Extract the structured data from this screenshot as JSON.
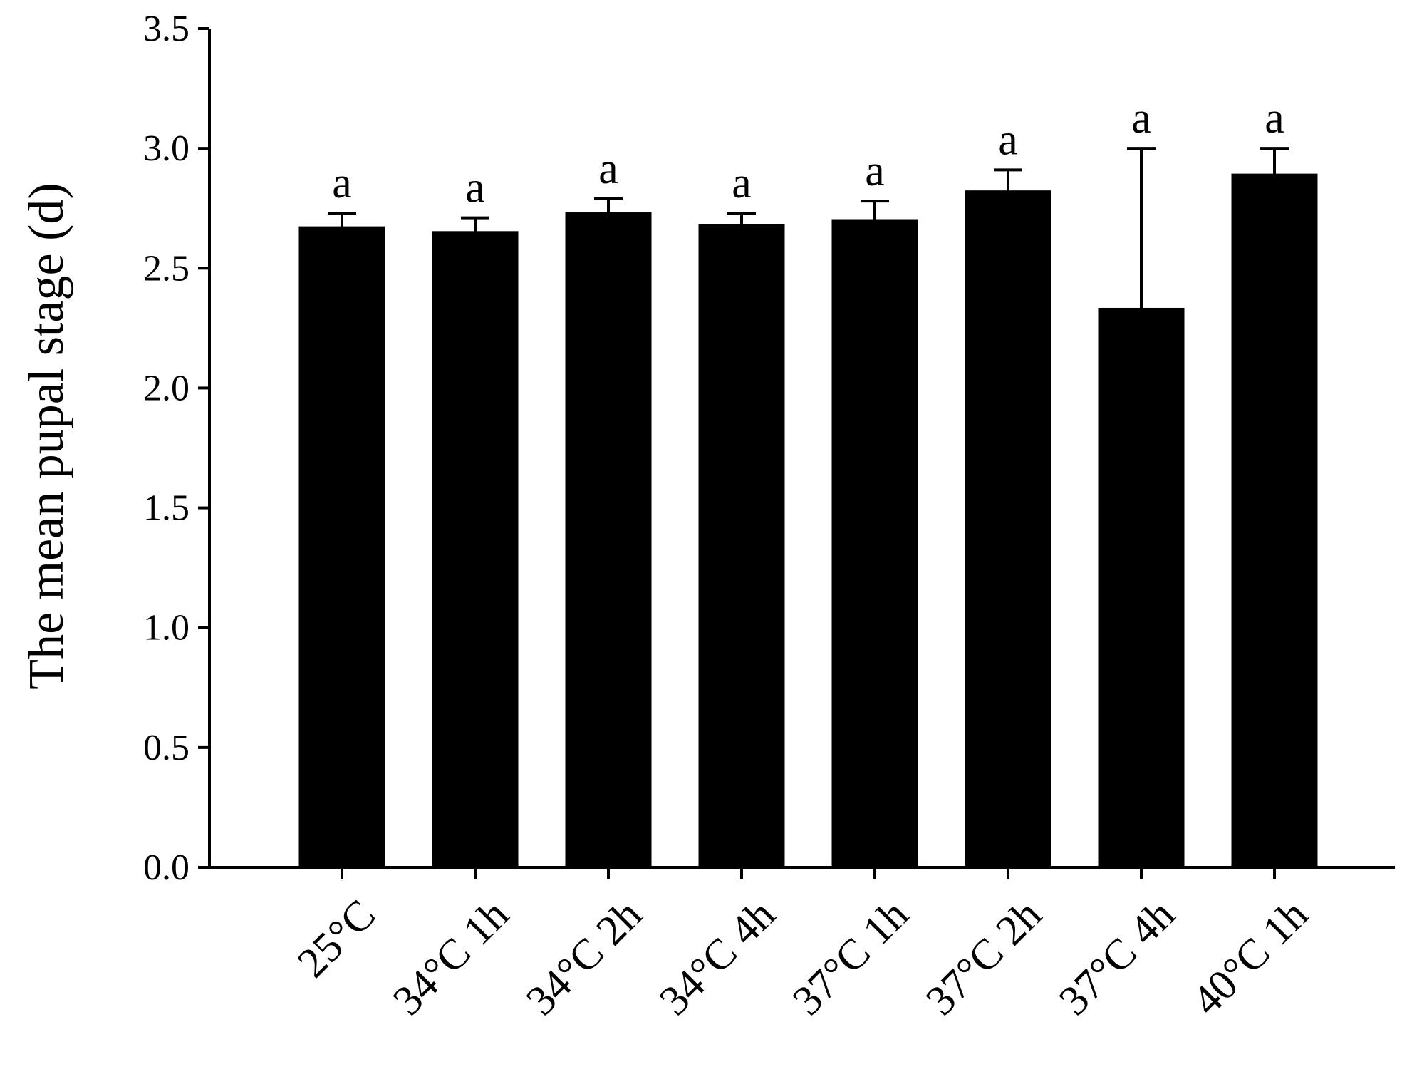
{
  "chart_data": {
    "type": "bar",
    "title": "",
    "xlabel": "",
    "ylabel": "The mean pupal stage (d)",
    "ylim": [
      0,
      3.5
    ],
    "yticks": [
      "0.0",
      "0.5",
      "1.0",
      "1.5",
      "2.0",
      "2.5",
      "3.0",
      "3.5"
    ],
    "categories": [
      "25°C",
      "34°C 1h",
      "34°C 2h",
      "34°C 4h",
      "37°C 1h",
      "37°C 2h",
      "37°C 4h",
      "40°C 1h"
    ],
    "values": [
      2.67,
      2.65,
      2.73,
      2.68,
      2.7,
      2.82,
      2.33,
      2.89
    ],
    "errors": [
      0.06,
      0.06,
      0.06,
      0.05,
      0.08,
      0.09,
      0.67,
      0.11
    ],
    "significance_labels": [
      "a",
      "a",
      "a",
      "a",
      "a",
      "a",
      "a",
      "a"
    ],
    "bar_color": "#000000",
    "grid": false,
    "legend": "none"
  }
}
